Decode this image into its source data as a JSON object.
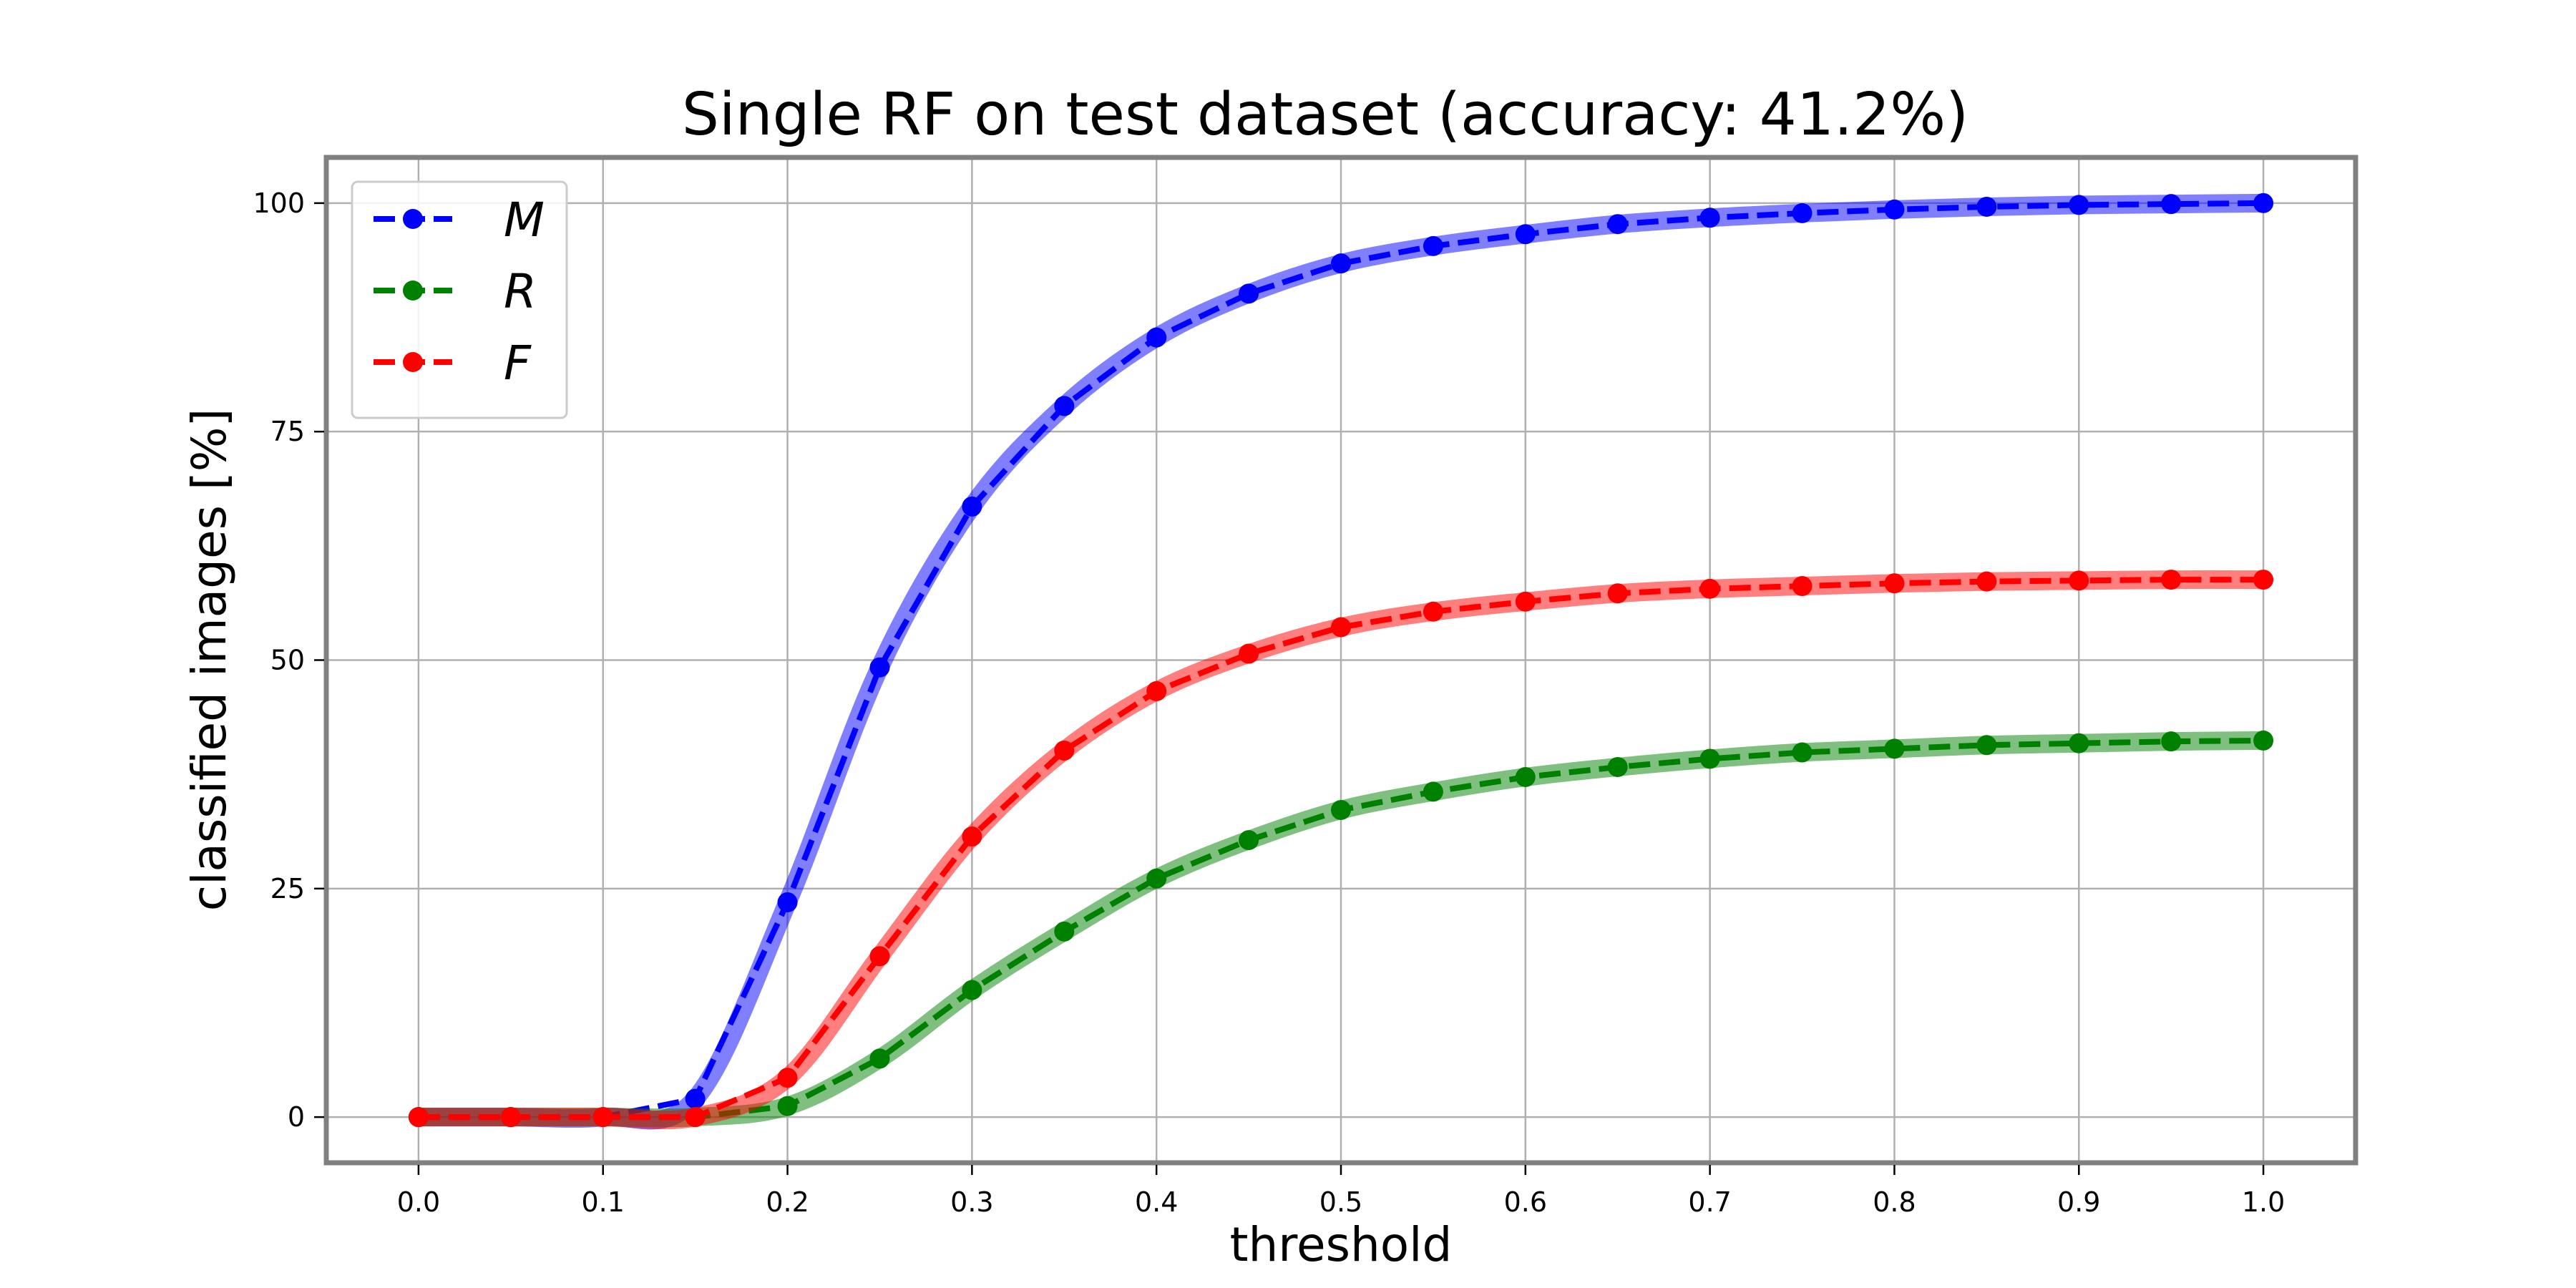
{
  "chart_data": {
    "type": "line",
    "title": "Single RF on test dataset (accuracy: 41.2%)",
    "xlabel": "threshold",
    "ylabel": "classified images [%]",
    "xlim": [
      -0.05,
      1.05
    ],
    "ylim": [
      -5,
      105
    ],
    "xticks": [
      0.0,
      0.1,
      0.2,
      0.3,
      0.4,
      0.5,
      0.6,
      0.7,
      0.8,
      0.9,
      1.0
    ],
    "xtick_labels": [
      "0.0",
      "0.1",
      "0.2",
      "0.3",
      "0.4",
      "0.5",
      "0.6",
      "0.7",
      "0.8",
      "0.9",
      "1.0"
    ],
    "yticks": [
      0,
      25,
      50,
      75,
      100
    ],
    "ytick_labels": [
      "0",
      "25",
      "50",
      "75",
      "100"
    ],
    "grid": true,
    "legend_position": "top-left",
    "x": [
      0.0,
      0.05,
      0.1,
      0.15,
      0.2,
      0.25,
      0.3,
      0.35,
      0.4,
      0.45,
      0.5,
      0.55,
      0.6,
      0.65,
      0.7,
      0.75,
      0.8,
      0.85,
      0.9,
      0.95,
      1.0
    ],
    "series": [
      {
        "name": "M",
        "color": "#0000ff",
        "values": [
          0,
          0,
          0,
          2.0,
          23.5,
          49.2,
          66.8,
          77.8,
          85.3,
          90.1,
          93.4,
          95.3,
          96.6,
          97.7,
          98.4,
          98.9,
          99.3,
          99.6,
          99.8,
          99.9,
          100
        ]
      },
      {
        "name": "R",
        "color": "#008000",
        "values": [
          0,
          0,
          0,
          0,
          1.2,
          6.4,
          13.9,
          20.3,
          26.1,
          30.3,
          33.6,
          35.6,
          37.2,
          38.3,
          39.2,
          39.9,
          40.3,
          40.7,
          40.9,
          41.1,
          41.2
        ]
      },
      {
        "name": "F",
        "color": "#ff0000",
        "values": [
          0,
          0,
          0,
          0,
          4.3,
          17.6,
          30.7,
          40.1,
          46.6,
          50.7,
          53.6,
          55.3,
          56.4,
          57.3,
          57.8,
          58.1,
          58.4,
          58.6,
          58.7,
          58.8,
          58.8
        ]
      }
    ]
  }
}
